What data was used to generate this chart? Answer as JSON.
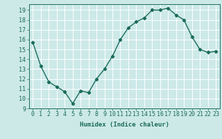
{
  "x": [
    0,
    1,
    2,
    3,
    4,
    5,
    6,
    7,
    8,
    9,
    10,
    11,
    12,
    13,
    14,
    15,
    16,
    17,
    18,
    19,
    20,
    21,
    22,
    23
  ],
  "y": [
    15.7,
    13.3,
    11.7,
    11.2,
    10.7,
    9.5,
    10.8,
    10.6,
    12.0,
    13.0,
    14.3,
    16.0,
    17.2,
    17.8,
    18.2,
    19.0,
    19.0,
    19.2,
    18.5,
    18.0,
    16.3,
    15.0,
    14.7,
    14.8
  ],
  "line_color": "#1a6b5a",
  "marker": "D",
  "marker_size": 2.2,
  "bg_color": "#cce9e8",
  "grid_color": "#ffffff",
  "tick_color": "#1a6b5a",
  "xlabel": "Humidex (Indice chaleur)",
  "xlim": [
    -0.5,
    23.5
  ],
  "ylim": [
    9,
    19.6
  ],
  "yticks": [
    9,
    10,
    11,
    12,
    13,
    14,
    15,
    16,
    17,
    18,
    19
  ],
  "xticks": [
    0,
    1,
    2,
    3,
    4,
    5,
    6,
    7,
    8,
    9,
    10,
    11,
    12,
    13,
    14,
    15,
    16,
    17,
    18,
    19,
    20,
    21,
    22,
    23
  ],
  "xlabel_fontsize": 6.5,
  "tick_fontsize": 6
}
